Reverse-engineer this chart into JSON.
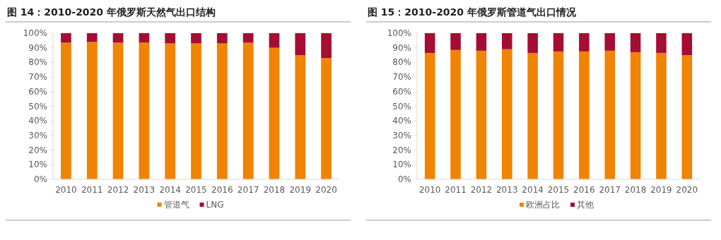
{
  "chart_data": [
    {
      "type": "bar",
      "title": "图 14：2010-2020 年俄罗斯天然气出口结构",
      "stacked": true,
      "legend": "bottom",
      "categories": [
        "2010",
        "2011",
        "2012",
        "2013",
        "2014",
        "2015",
        "2016",
        "2017",
        "2018",
        "2019",
        "2020"
      ],
      "ylim": [
        0,
        100
      ],
      "yticks": [
        {
          "value": 0,
          "label": "0%"
        },
        {
          "value": 10,
          "label": "10%"
        },
        {
          "value": 20,
          "label": "20%"
        },
        {
          "value": 30,
          "label": "30%"
        },
        {
          "value": 40,
          "label": "40%"
        },
        {
          "value": 50,
          "label": "50%"
        },
        {
          "value": 60,
          "label": "60%"
        },
        {
          "value": 70,
          "label": "70%"
        },
        {
          "value": 80,
          "label": "80%"
        },
        {
          "value": 90,
          "label": "90%"
        },
        {
          "value": 100,
          "label": "100%"
        }
      ],
      "series": [
        {
          "name": "管道气",
          "color": "#f08300",
          "values": [
            93.5,
            94,
            93.5,
            93.5,
            93,
            93,
            93,
            93.5,
            90,
            85,
            83
          ]
        },
        {
          "name": "LNG",
          "color": "#a50d32",
          "values": [
            6.5,
            6,
            6.5,
            6.5,
            7,
            7,
            7,
            6.5,
            10,
            15,
            17
          ]
        }
      ]
    },
    {
      "type": "bar",
      "title": "图 15：2010-2020 年俄罗斯管道气出口情况",
      "stacked": true,
      "legend": "bottom",
      "categories": [
        "2010",
        "2011",
        "2012",
        "2013",
        "2014",
        "2015",
        "2016",
        "2017",
        "2018",
        "2019",
        "2020"
      ],
      "ylim": [
        0,
        100
      ],
      "yticks": [
        {
          "value": 0,
          "label": "0%"
        },
        {
          "value": 10,
          "label": "10%"
        },
        {
          "value": 20,
          "label": "20%"
        },
        {
          "value": 30,
          "label": "30%"
        },
        {
          "value": 40,
          "label": "40%"
        },
        {
          "value": 50,
          "label": "50%"
        },
        {
          "value": 60,
          "label": "60%"
        },
        {
          "value": 70,
          "label": "70%"
        },
        {
          "value": 80,
          "label": "80%"
        },
        {
          "value": 90,
          "label": "90%"
        },
        {
          "value": 100,
          "label": "100%"
        }
      ],
      "series": [
        {
          "name": "欧洲占比",
          "color": "#f08300",
          "values": [
            86.5,
            88.5,
            88,
            89,
            86.5,
            87.5,
            87.5,
            88,
            87,
            86.5,
            85
          ]
        },
        {
          "name": "其他",
          "color": "#a50d32",
          "values": [
            13.5,
            11.5,
            12,
            11,
            13.5,
            12.5,
            12.5,
            12,
            13,
            13.5,
            15
          ]
        }
      ]
    }
  ]
}
